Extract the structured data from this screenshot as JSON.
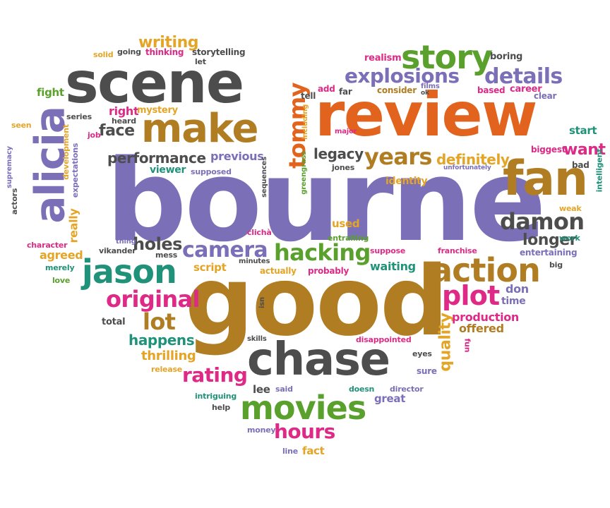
{
  "colors": {
    "purple": "#7b6fb8",
    "orange": "#e2631d",
    "brown": "#b07d22",
    "green": "#5aa02c",
    "teal": "#1f9279",
    "pink": "#de2a86",
    "gold": "#e4a526",
    "gray": "#5f5f5f",
    "dark": "#4d4d4d"
  },
  "words": [
    {
      "text": "bourne",
      "color": "purple"
    },
    {
      "text": "good",
      "color": "brown"
    },
    {
      "text": "review",
      "color": "orange"
    },
    {
      "text": "scene",
      "color": "dark"
    },
    {
      "text": "chase",
      "color": "dark"
    },
    {
      "text": "fan",
      "color": "brown"
    },
    {
      "text": "make",
      "color": "brown"
    },
    {
      "text": "alicia",
      "color": "purple"
    },
    {
      "text": "story",
      "color": "green"
    },
    {
      "text": "movies",
      "color": "green"
    },
    {
      "text": "jason",
      "color": "teal"
    },
    {
      "text": "action",
      "color": "brown"
    },
    {
      "text": "hacking",
      "color": "green"
    },
    {
      "text": "damon",
      "color": "dark"
    },
    {
      "text": "years",
      "color": "brown"
    },
    {
      "text": "explosions",
      "color": "purple"
    },
    {
      "text": "details",
      "color": "purple"
    },
    {
      "text": "camera",
      "color": "purple"
    },
    {
      "text": "original",
      "color": "pink"
    },
    {
      "text": "plot",
      "color": "pink"
    },
    {
      "text": "tommy",
      "color": "orange"
    },
    {
      "text": "hours",
      "color": "pink"
    },
    {
      "text": "performance",
      "color": "dark"
    },
    {
      "text": "lot",
      "color": "brown"
    },
    {
      "text": "rating",
      "color": "pink"
    },
    {
      "text": "face",
      "color": "dark"
    },
    {
      "text": "legacy",
      "color": "dark"
    },
    {
      "text": "want",
      "color": "pink"
    },
    {
      "text": "definitely",
      "color": "gold"
    },
    {
      "text": "holes",
      "color": "dark"
    },
    {
      "text": "longer",
      "color": "dark"
    },
    {
      "text": "writing",
      "color": "gold"
    },
    {
      "text": "happens",
      "color": "teal"
    },
    {
      "text": "thrilling",
      "color": "gold"
    },
    {
      "text": "quality",
      "color": "gold"
    },
    {
      "text": "production",
      "color": "pink"
    },
    {
      "text": "offered",
      "color": "brown"
    },
    {
      "text": "previous",
      "color": "purple"
    },
    {
      "text": "right",
      "color": "pink"
    },
    {
      "text": "really",
      "color": "gold"
    },
    {
      "text": "fight",
      "color": "green"
    },
    {
      "text": "viewer",
      "color": "teal"
    },
    {
      "text": "script",
      "color": "gold"
    },
    {
      "text": "agreed",
      "color": "gold"
    },
    {
      "text": "waiting",
      "color": "teal"
    },
    {
      "text": "time",
      "color": "purple"
    },
    {
      "text": "don",
      "color": "purple"
    },
    {
      "text": "lee",
      "color": "dark"
    },
    {
      "text": "great",
      "color": "purple"
    },
    {
      "text": "start",
      "color": "teal"
    },
    {
      "text": "used",
      "color": "gold"
    },
    {
      "text": "identity",
      "color": "gold"
    },
    {
      "text": "fact",
      "color": "gold"
    },
    {
      "text": "mystery",
      "color": "gold"
    },
    {
      "text": "thinking",
      "color": "pink"
    },
    {
      "text": "storytelling",
      "color": "dark"
    },
    {
      "text": "realism",
      "color": "pink"
    },
    {
      "text": "boring",
      "color": "dark"
    },
    {
      "text": "career",
      "color": "pink"
    },
    {
      "text": "based",
      "color": "pink"
    },
    {
      "text": "consider",
      "color": "brown"
    },
    {
      "text": "add",
      "color": "pink"
    },
    {
      "text": "far",
      "color": "dark"
    },
    {
      "text": "tell",
      "color": "dark"
    },
    {
      "text": "films",
      "color": "purple"
    },
    {
      "text": "ok",
      "color": "dark"
    },
    {
      "text": "clear",
      "color": "purple"
    },
    {
      "text": "biggest",
      "color": "pink"
    },
    {
      "text": "bad",
      "color": "dark"
    },
    {
      "text": "intelligent",
      "color": "teal"
    },
    {
      "text": "weak",
      "color": "gold"
    },
    {
      "text": "work",
      "color": "teal"
    },
    {
      "text": "big",
      "color": "dark"
    },
    {
      "text": "entertaining",
      "color": "purple"
    },
    {
      "text": "franchise",
      "color": "pink"
    },
    {
      "text": "suppose",
      "color": "pink"
    },
    {
      "text": "actually",
      "color": "gold"
    },
    {
      "text": "probably",
      "color": "pink"
    },
    {
      "text": "entralling",
      "color": "green"
    },
    {
      "text": "clichà",
      "color": "pink"
    },
    {
      "text": "minutes",
      "color": "dark"
    },
    {
      "text": "mess",
      "color": "dark"
    },
    {
      "text": "vikander",
      "color": "dark"
    },
    {
      "text": "thing",
      "color": "purple"
    },
    {
      "text": "character",
      "color": "pink"
    },
    {
      "text": "merely",
      "color": "teal"
    },
    {
      "text": "love",
      "color": "green"
    },
    {
      "text": "actors",
      "color": "dark"
    },
    {
      "text": "supremacy",
      "color": "purple"
    },
    {
      "text": "seen",
      "color": "gold"
    },
    {
      "text": "series",
      "color": "dark"
    },
    {
      "text": "heard",
      "color": "dark"
    },
    {
      "text": "job",
      "color": "pink"
    },
    {
      "text": "development",
      "color": "gold"
    },
    {
      "text": "expectations",
      "color": "purple"
    },
    {
      "text": "supposed",
      "color": "purple"
    },
    {
      "text": "solid",
      "color": "gold"
    },
    {
      "text": "going",
      "color": "dark"
    },
    {
      "text": "let",
      "color": "dark"
    },
    {
      "text": "including",
      "color": "gold"
    },
    {
      "text": "major",
      "color": "pink"
    },
    {
      "text": "jones",
      "color": "dark"
    },
    {
      "text": "greengrass",
      "color": "green"
    },
    {
      "text": "sequences",
      "color": "dark"
    },
    {
      "text": "unfortunately",
      "color": "purple"
    },
    {
      "text": "total",
      "color": "dark"
    },
    {
      "text": "skills",
      "color": "dark"
    },
    {
      "text": "release",
      "color": "gold"
    },
    {
      "text": "intriguing",
      "color": "teal"
    },
    {
      "text": "help",
      "color": "dark"
    },
    {
      "text": "said",
      "color": "purple"
    },
    {
      "text": "doesn",
      "color": "teal"
    },
    {
      "text": "director",
      "color": "purple"
    },
    {
      "text": "money",
      "color": "purple"
    },
    {
      "text": "line",
      "color": "purple"
    },
    {
      "text": "isn",
      "color": "dark"
    },
    {
      "text": "disappointed",
      "color": "pink"
    },
    {
      "text": "eyes",
      "color": "dark"
    },
    {
      "text": "sure",
      "color": "purple"
    },
    {
      "text": "fun",
      "color": "pink"
    }
  ]
}
